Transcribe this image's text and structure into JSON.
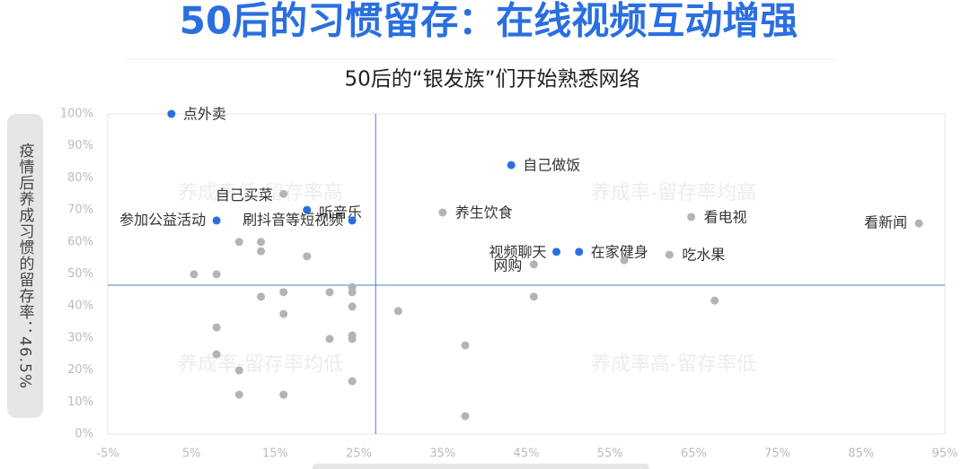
{
  "chart_data": {
    "type": "scatter",
    "title": "50后的习惯留存：在线视频互动增强",
    "subtitle": "50后的“银发族”们开始熟悉网络",
    "y_label": "疫情后养成习惯的留存率：46.5%",
    "xlim": [
      -5,
      95
    ],
    "ylim": [
      0,
      100
    ],
    "xticks": [
      {
        "value": -5,
        "label": "-5%"
      },
      {
        "value": 5,
        "label": "5%"
      },
      {
        "value": 15,
        "label": "15%"
      },
      {
        "value": 25,
        "label": "25%"
      },
      {
        "value": 35,
        "label": "35%"
      },
      {
        "value": 45,
        "label": "45%"
      },
      {
        "value": 55,
        "label": "55%"
      },
      {
        "value": 65,
        "label": "65%"
      },
      {
        "value": 75,
        "label": "75%"
      },
      {
        "value": 85,
        "label": "85%"
      },
      {
        "value": 95,
        "label": "95%"
      }
    ],
    "yticks": [
      {
        "value": 0,
        "label": "0%"
      },
      {
        "value": 10,
        "label": "10%"
      },
      {
        "value": 20,
        "label": "20%"
      },
      {
        "value": 30,
        "label": "30%"
      },
      {
        "value": 40,
        "label": "40%"
      },
      {
        "value": 50,
        "label": "50%"
      },
      {
        "value": 60,
        "label": "60%"
      },
      {
        "value": 70,
        "label": "70%"
      },
      {
        "value": 80,
        "label": "80%"
      },
      {
        "value": 90,
        "label": "90%"
      },
      {
        "value": 100,
        "label": "100%"
      }
    ],
    "x_divider": 27,
    "y_divider": 46.5,
    "quadrant_labels": [
      "养成率低-留存率高",
      "养成率-留存率均高",
      "养成率-留存率均低",
      "养成率高-留存率低"
    ],
    "series": [
      {
        "color": "#2a6fe0",
        "x": [
          2.6,
          43.2,
          18.8,
          24.2,
          8.0,
          48.6,
          51.3
        ],
        "values": [
          100,
          84,
          70,
          66.7,
          66.7,
          56.9,
          56.9
        ],
        "labels": [
          "点外卖",
          "自己做饭",
          "听音乐",
          "刷抖音等短视频",
          "参加公益活动",
          "视频聊天",
          "在家健身"
        ]
      },
      {
        "color": "#b4b4b4",
        "x": [
          16.0,
          35.0,
          64.7,
          91.9,
          62.1,
          45.9,
          10.7,
          13.3,
          13.3,
          18.8,
          5.3,
          8.0,
          56.7,
          13.3,
          16.0,
          21.5,
          24.2,
          24.2,
          24.2,
          45.9,
          67.5,
          29.7,
          16.0,
          8.0,
          37.7,
          21.5,
          24.2,
          24.2,
          8.0,
          10.7,
          24.2,
          10.7,
          16.0,
          37.7
        ],
        "values": [
          75,
          69.2,
          67.8,
          65.8,
          56,
          53,
          60,
          60,
          57.1,
          55.5,
          49.9,
          49.9,
          54.3,
          42.9,
          44.3,
          44.3,
          45.9,
          44.3,
          39.8,
          42.9,
          41.7,
          38.4,
          37.5,
          33.3,
          27.7,
          29.7,
          30.8,
          29.7,
          24.9,
          19.9,
          16.5,
          12.3,
          12.3,
          5.6
        ],
        "labels": [
          "自己买菜",
          "养生饮食",
          "看电视",
          "看新闻",
          "吃水果",
          "网购",
          null,
          null,
          null,
          null,
          null,
          null,
          null,
          null,
          null,
          null,
          null,
          null,
          null,
          null,
          null,
          null,
          null,
          null,
          null,
          null,
          null,
          null,
          null,
          null,
          null,
          null,
          null,
          null
        ]
      }
    ]
  }
}
